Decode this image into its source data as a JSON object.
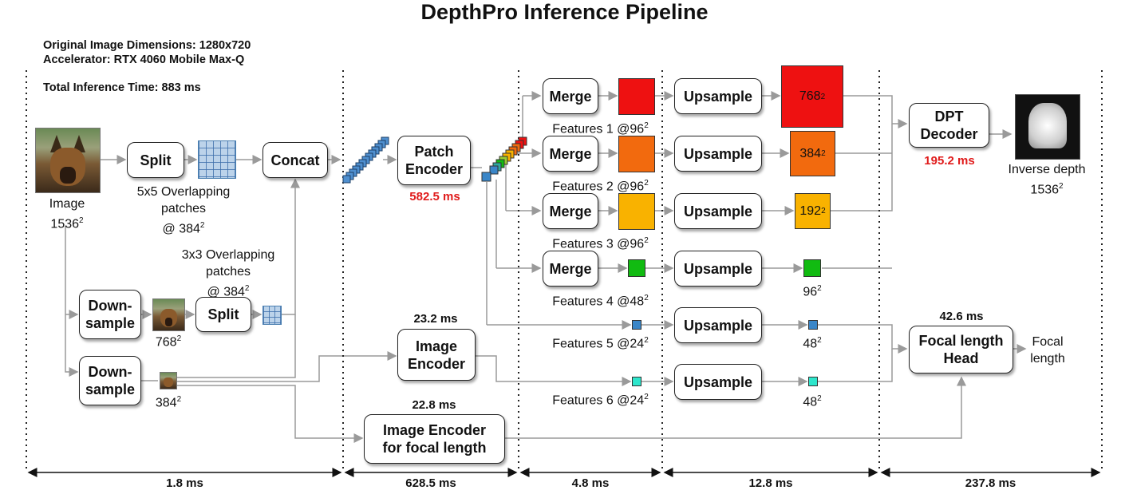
{
  "title": "DepthPro Inference Pipeline",
  "info": {
    "dims": "Original Image Dimensions: 1280x720",
    "accel": "Accelerator: RTX 4060 Mobile Max-Q",
    "total": "Total Inference Time:  883 ms"
  },
  "input": {
    "label": "Image",
    "size": "1536"
  },
  "split1": {
    "label": "Split",
    "caption1": "5x5 Overlapping",
    "caption2": "patches",
    "caption3": "@ 384"
  },
  "split2": {
    "label": "Split",
    "caption1": "3x3 Overlapping",
    "caption2": "patches",
    "caption3": "@ 384"
  },
  "downsample": {
    "line1": "Down-",
    "line2": "sample"
  },
  "ds_sizes": {
    "a": "768",
    "b": "384"
  },
  "concat": "Concat",
  "patch_encoder": {
    "line1": "Patch",
    "line2": "Encoder",
    "time": "582.5 ms"
  },
  "image_encoder": {
    "line1": "Image",
    "line2": "Encoder",
    "time": "23.2 ms"
  },
  "focal_encoder": {
    "line1": "Image Encoder",
    "line2": "for focal length",
    "time": "22.8 ms"
  },
  "merge": "Merge",
  "upsample": "Upsample",
  "features": [
    {
      "label": "Features 1 @96",
      "out": "768",
      "color": "#ee1111"
    },
    {
      "label": "Features 2 @96",
      "out": "384",
      "color": "#f26a0e"
    },
    {
      "label": "Features 3 @96",
      "out": "192",
      "color": "#f9b200"
    },
    {
      "label": "Features 4 @48",
      "out": "96",
      "color": "#11bb11"
    },
    {
      "label": "Features 5 @24",
      "out": "48",
      "color": "#3a86c8"
    },
    {
      "label": "Features 6 @24",
      "out": "48",
      "color": "#2ee6cc"
    }
  ],
  "dpt": {
    "line1": "DPT",
    "line2": "Decoder",
    "time": "195.2 ms"
  },
  "output": {
    "line1": "Inverse depth",
    "line2": "1536"
  },
  "focal_head": {
    "line1": "Focal length",
    "line2": "Head",
    "time": "42.6 ms"
  },
  "focal_out": {
    "line1": "Focal",
    "line2": "length"
  },
  "sup2": "2",
  "timings": [
    "1.8 ms",
    "628.5 ms",
    "4.8 ms",
    "12.8 ms",
    "237.8 ms"
  ]
}
